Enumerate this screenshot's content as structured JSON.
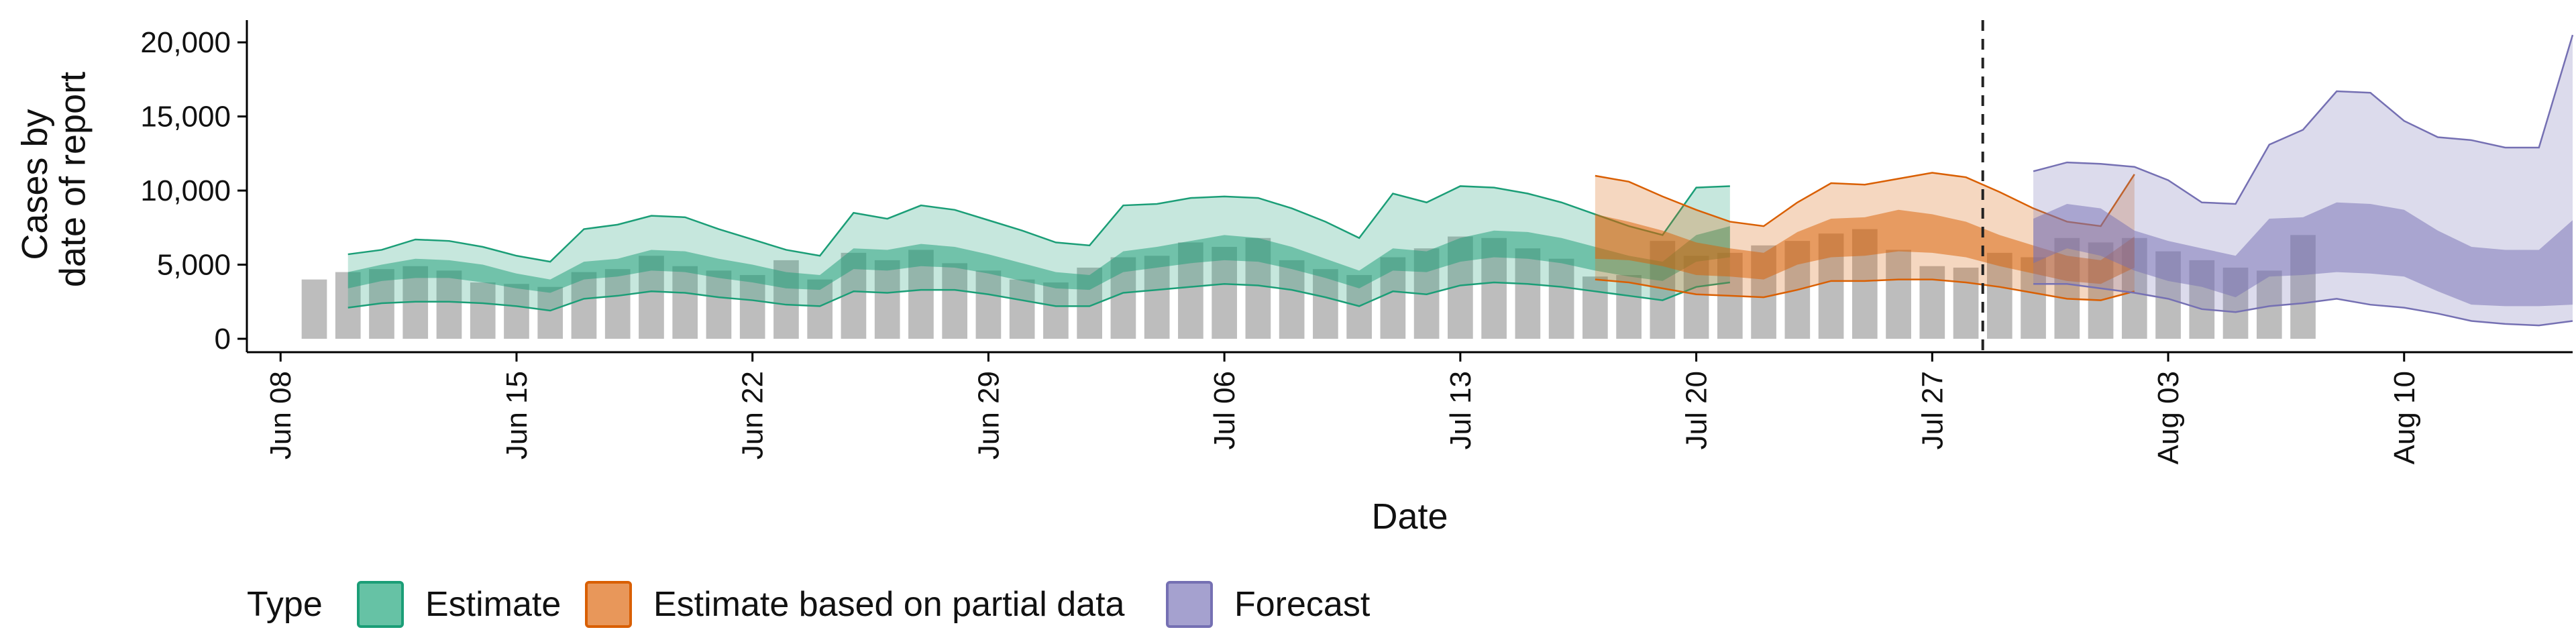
{
  "chart_data": {
    "type": "area",
    "xlabel": "Date",
    "ylabel": [
      "Cases by",
      "date of report"
    ],
    "ylim": [
      0,
      21500
    ],
    "xlim": [
      "2020-06-07",
      "2020-08-15"
    ],
    "y_ticks": [
      0,
      5000,
      10000,
      15000,
      20000
    ],
    "y_tick_labels": [
      "0",
      "5,000",
      "10,000",
      "15,000",
      "20,000"
    ],
    "x_ticks": [
      "2020-06-08",
      "2020-06-15",
      "2020-06-22",
      "2020-06-29",
      "2020-07-06",
      "2020-07-13",
      "2020-07-20",
      "2020-07-27",
      "2020-08-03",
      "2020-08-10"
    ],
    "x_tick_labels": [
      "Jun 08",
      "Jun 15",
      "Jun 22",
      "Jun 29",
      "Jul 06",
      "Jul 13",
      "Jul 20",
      "Jul 27",
      "Aug 03",
      "Aug 10"
    ],
    "forecast_start": "2020-07-29",
    "grid": false,
    "legend": {
      "title": "Type",
      "position": "bottom",
      "entries": [
        "Estimate",
        "Estimate based on partial data",
        "Forecast"
      ]
    },
    "colors": {
      "bars": "#bdbdbd",
      "Estimate": "#1b9e77",
      "Estimate based on partial data": "#d95f02",
      "Forecast": "#7570b3",
      "legend_fills": {
        "Estimate": "#66c2a5",
        "Estimate based on partial data": "#e8975a",
        "Forecast": "#a5a1cf"
      }
    },
    "observed": {
      "name": "Reported cases",
      "start": "2020-06-09",
      "values": [
        4000,
        4500,
        4700,
        4900,
        4600,
        3800,
        3700,
        3500,
        4500,
        4700,
        5600,
        4900,
        4600,
        4300,
        5300,
        4000,
        5800,
        5300,
        6000,
        5100,
        4600,
        4000,
        3800,
        4800,
        5500,
        5600,
        6500,
        6200,
        6800,
        5300,
        4700,
        4300,
        5500,
        6100,
        6900,
        6800,
        6100,
        5400,
        4200,
        4300,
        6600,
        5600,
        5800,
        6300,
        6600,
        7100,
        7400,
        6000,
        4900,
        4800,
        5800,
        5500,
        6800,
        6500,
        6800,
        5900,
        5300,
        4800,
        4600,
        7000
      ]
    },
    "series": [
      {
        "name": "Estimate",
        "start": "2020-06-10",
        "lower90": [
          2100,
          2400,
          2500,
          2500,
          2400,
          2200,
          1900,
          2700,
          2900,
          3200,
          3100,
          2800,
          2600,
          2300,
          2200,
          3200,
          3100,
          3300,
          3300,
          3000,
          2600,
          2200,
          2200,
          3100,
          3300,
          3500,
          3700,
          3600,
          3300,
          2800,
          2200,
          3200,
          3000,
          3600,
          3800,
          3700,
          3500,
          3200,
          2900,
          2600,
          3500,
          3800
        ],
        "lower50": [
          3400,
          3900,
          4100,
          4100,
          3800,
          3400,
          3100,
          4000,
          4200,
          4600,
          4500,
          4100,
          3800,
          3400,
          3300,
          4700,
          4600,
          4900,
          4800,
          4400,
          3900,
          3400,
          3300,
          4500,
          4800,
          5100,
          5300,
          5200,
          4700,
          4100,
          3400,
          4600,
          4500,
          5200,
          5500,
          5400,
          5100,
          4600,
          4200,
          3900,
          5200,
          5500
        ],
        "upper50": [
          4500,
          5000,
          5400,
          5300,
          5000,
          4400,
          4000,
          5200,
          5400,
          6000,
          5900,
          5400,
          5000,
          4500,
          4300,
          6100,
          6000,
          6400,
          6200,
          5700,
          5100,
          4500,
          4300,
          5900,
          6200,
          6600,
          7000,
          6800,
          6200,
          5400,
          4600,
          6100,
          5900,
          6800,
          7300,
          7200,
          6800,
          6200,
          5600,
          5200,
          7000,
          7600
        ],
        "upper90": [
          5700,
          6000,
          6700,
          6600,
          6200,
          5600,
          5200,
          7400,
          7700,
          8300,
          8200,
          7400,
          6700,
          6000,
          5600,
          8500,
          8100,
          9000,
          8700,
          8000,
          7300,
          6500,
          6300,
          9000,
          9100,
          9500,
          9600,
          9500,
          8800,
          7900,
          6800,
          9800,
          9200,
          10300,
          10200,
          9800,
          9200,
          8400,
          7600,
          7000,
          10200,
          10300
        ]
      },
      {
        "name": "Estimate based on partial data",
        "start": "2020-07-17",
        "lower90": [
          4000,
          3800,
          3400,
          3000,
          2900,
          2800,
          3300,
          3900,
          3900,
          4000,
          4000,
          3800,
          3500,
          3100,
          2700,
          2600,
          3200
        ],
        "lower50": [
          5400,
          5300,
          4900,
          4300,
          4200,
          4000,
          5000,
          5500,
          5600,
          5900,
          5800,
          5500,
          4900,
          4400,
          3900,
          3700,
          4800
        ],
        "upper50": [
          8400,
          7900,
          7300,
          6500,
          6100,
          5800,
          7200,
          8100,
          8200,
          8700,
          8400,
          7900,
          7000,
          6300,
          5600,
          5300,
          6900
        ],
        "upper90": [
          11000,
          10600,
          9600,
          8700,
          7900,
          7600,
          9200,
          10500,
          10400,
          10800,
          11200,
          10900,
          9900,
          8800,
          7900,
          7600,
          11100
        ]
      },
      {
        "name": "Forecast",
        "start": "2020-07-30",
        "lower90": [
          3700,
          3700,
          3400,
          3100,
          2700,
          2000,
          1800,
          2200,
          2400,
          2700,
          2300,
          2100,
          1700,
          1200,
          1000,
          900,
          1200
        ],
        "lower50": [
          5100,
          6100,
          5600,
          4600,
          3900,
          3500,
          2800,
          4200,
          4300,
          4500,
          4400,
          4200,
          3200,
          2300,
          2200,
          2200,
          2300
        ],
        "upper50": [
          8100,
          9100,
          8800,
          7300,
          6600,
          6100,
          5600,
          8100,
          8200,
          9200,
          9100,
          8700,
          7300,
          6200,
          6000,
          6000,
          8000
        ],
        "upper90": [
          11300,
          11900,
          11800,
          11600,
          10700,
          9200,
          9100,
          13100,
          14100,
          16700,
          16600,
          14700,
          13600,
          13400,
          12900,
          12900,
          20500
        ]
      }
    ]
  }
}
